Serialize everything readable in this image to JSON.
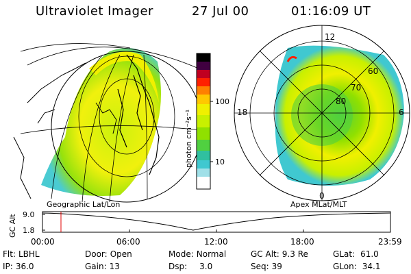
{
  "header": {
    "title": "Ultraviolet Imager",
    "date": "27 Jul 00",
    "time": "01:16:09 UT"
  },
  "left_map": {
    "caption": "Geographic Lat/Lon"
  },
  "right_map": {
    "caption": "Apex MLat/MLT",
    "mlt_labels": [
      "12",
      "18",
      "6",
      "0"
    ],
    "lat_labels": [
      "60",
      "70",
      "80"
    ]
  },
  "colorbar": {
    "unit_label": "photon cm⁻²s⁻¹",
    "ticks": [
      "100",
      "10"
    ],
    "colors": [
      "#000000",
      "#400040",
      "#800040",
      "#c00000",
      "#ff2000",
      "#ff8000",
      "#ffc800",
      "#f0f000",
      "#c8f000",
      "#90e000",
      "#50d040",
      "#30c0a0",
      "#40c8d0",
      "#a0e0e8",
      "#ffffff"
    ]
  },
  "timeline": {
    "y_axis_label": "GC Alt",
    "y_ticks": [
      "9.0",
      "1.8"
    ],
    "x_ticks": [
      "00:00",
      "06:00",
      "12:00",
      "18:00",
      "23:59"
    ],
    "marker_time": "01:16"
  },
  "footer": {
    "flt_label": "Flt:",
    "flt_value": "LBHL",
    "ip_label": "IP:",
    "ip_value": "36.0",
    "door_label": "Door:",
    "door_value": "Open",
    "gain_label": "Gain:",
    "gain_value": "13",
    "mode_label": "Mode:",
    "mode_value": "Normal",
    "dsp_label": "Dsp:",
    "dsp_value": "3.0",
    "gcalt_label": "GC Alt:",
    "gcalt_value": "9.3 Re",
    "seq_label": "Seq:",
    "seq_value": "39",
    "glat_label": "GLat:",
    "glat_value": "61.0",
    "glon_label": "GLon:",
    "glon_value": "34.1"
  }
}
